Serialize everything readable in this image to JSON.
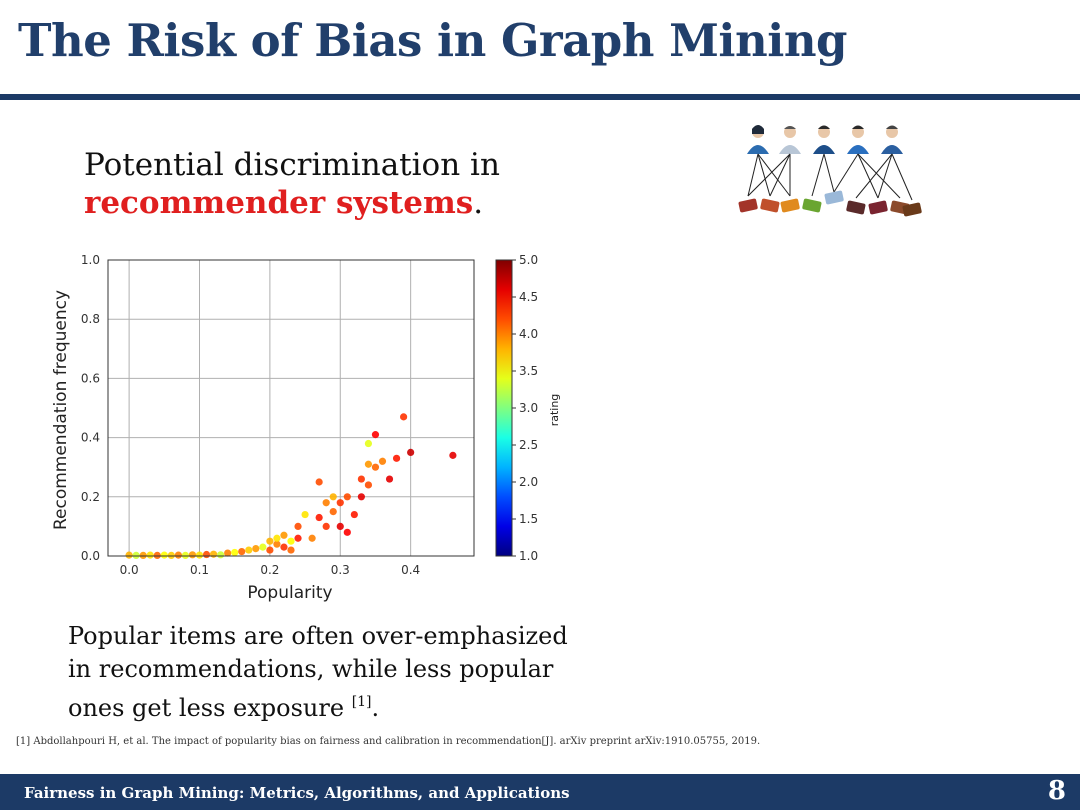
{
  "slide": {
    "title": "The Risk of Bias in Graph Mining",
    "headline_line1": "Potential discrimination in",
    "headline_emphasis": "recommender systems",
    "headline_period": ".",
    "caption_text": "Popular items are often over-emphasized in recommendations, while less popular ones get less exposure",
    "caption_citation": "[1]",
    "caption_end": ".",
    "reference": "[1] Abdollahpouri H, et al. The impact of popularity bias on fairness and calibration in recommendation[J]. arXiv preprint arXiv:1910.05755, 2019.",
    "footer": "Fairness in Graph Mining: Metrics, Algorithms, and Applications",
    "page_number": "8"
  },
  "colors": {
    "title": "#213f6b",
    "rule": "#1c3a66",
    "emphasis": "#e01f1f"
  },
  "illustration": {
    "users": [
      "user-female",
      "user-male",
      "user-male",
      "user-male",
      "user-male"
    ],
    "items": [
      "#a3342a",
      "#c0502b",
      "#e08a1e",
      "#6aa531",
      "#9ab8d8",
      "#5a2a2a",
      "#7a2430",
      "#8b4a2b",
      "#6a3a1a"
    ]
  },
  "chart_data": {
    "type": "scatter",
    "xlabel": "Popularity",
    "ylabel": "Recommendation frequency",
    "xlim": [
      -0.03,
      0.49
    ],
    "ylim": [
      0.0,
      1.0
    ],
    "xticks": [
      "0.0",
      "0.1",
      "0.2",
      "0.3",
      "0.4"
    ],
    "xtick_values": [
      0.0,
      0.1,
      0.2,
      0.3,
      0.4
    ],
    "yticks": [
      "0.0",
      "0.2",
      "0.4",
      "0.6",
      "0.8",
      "1.0"
    ],
    "ytick_values": [
      0.0,
      0.2,
      0.4,
      0.6,
      0.8,
      1.0
    ],
    "grid": true,
    "colorbar": {
      "label": "rating",
      "min": 1.0,
      "max": 5.0,
      "ticks": [
        "1.0",
        "1.5",
        "2.0",
        "2.5",
        "3.0",
        "3.5",
        "4.0",
        "4.5",
        "5.0"
      ],
      "tick_values": [
        1.0,
        1.5,
        2.0,
        2.5,
        3.0,
        3.5,
        4.0,
        4.5,
        5.0
      ]
    },
    "points": [
      {
        "x": 0.0,
        "y": 0.003,
        "r": 3.8
      },
      {
        "x": 0.01,
        "y": 0.002,
        "r": 3.3
      },
      {
        "x": 0.02,
        "y": 0.002,
        "r": 3.9
      },
      {
        "x": 0.03,
        "y": 0.003,
        "r": 3.6
      },
      {
        "x": 0.04,
        "y": 0.002,
        "r": 4.1
      },
      {
        "x": 0.05,
        "y": 0.003,
        "r": 3.5
      },
      {
        "x": 0.06,
        "y": 0.002,
        "r": 3.7
      },
      {
        "x": 0.07,
        "y": 0.003,
        "r": 4.0
      },
      {
        "x": 0.08,
        "y": 0.002,
        "r": 3.4
      },
      {
        "x": 0.09,
        "y": 0.004,
        "r": 3.9
      },
      {
        "x": 0.1,
        "y": 0.003,
        "r": 3.6
      },
      {
        "x": 0.11,
        "y": 0.005,
        "r": 4.2
      },
      {
        "x": 0.12,
        "y": 0.006,
        "r": 3.8
      },
      {
        "x": 0.13,
        "y": 0.004,
        "r": 3.3
      },
      {
        "x": 0.14,
        "y": 0.01,
        "r": 4.0
      },
      {
        "x": 0.15,
        "y": 0.012,
        "r": 3.5
      },
      {
        "x": 0.16,
        "y": 0.015,
        "r": 4.1
      },
      {
        "x": 0.17,
        "y": 0.02,
        "r": 3.7
      },
      {
        "x": 0.18,
        "y": 0.025,
        "r": 3.9
      },
      {
        "x": 0.19,
        "y": 0.03,
        "r": 3.4
      },
      {
        "x": 0.2,
        "y": 0.02,
        "r": 4.2
      },
      {
        "x": 0.2,
        "y": 0.05,
        "r": 3.8
      },
      {
        "x": 0.21,
        "y": 0.04,
        "r": 4.0
      },
      {
        "x": 0.21,
        "y": 0.06,
        "r": 3.6
      },
      {
        "x": 0.22,
        "y": 0.03,
        "r": 4.3
      },
      {
        "x": 0.22,
        "y": 0.07,
        "r": 3.9
      },
      {
        "x": 0.23,
        "y": 0.02,
        "r": 4.1
      },
      {
        "x": 0.23,
        "y": 0.05,
        "r": 3.5
      },
      {
        "x": 0.24,
        "y": 0.1,
        "r": 4.2
      },
      {
        "x": 0.24,
        "y": 0.06,
        "r": 4.4
      },
      {
        "x": 0.25,
        "y": 0.14,
        "r": 3.6
      },
      {
        "x": 0.26,
        "y": 0.06,
        "r": 4.0
      },
      {
        "x": 0.27,
        "y": 0.25,
        "r": 4.2
      },
      {
        "x": 0.27,
        "y": 0.13,
        "r": 4.4
      },
      {
        "x": 0.28,
        "y": 0.18,
        "r": 4.0
      },
      {
        "x": 0.28,
        "y": 0.1,
        "r": 4.3
      },
      {
        "x": 0.29,
        "y": 0.2,
        "r": 3.8
      },
      {
        "x": 0.29,
        "y": 0.15,
        "r": 4.1
      },
      {
        "x": 0.3,
        "y": 0.18,
        "r": 4.3
      },
      {
        "x": 0.3,
        "y": 0.1,
        "r": 4.6
      },
      {
        "x": 0.31,
        "y": 0.2,
        "r": 4.2
      },
      {
        "x": 0.31,
        "y": 0.08,
        "r": 4.5
      },
      {
        "x": 0.32,
        "y": 0.14,
        "r": 4.4
      },
      {
        "x": 0.33,
        "y": 0.2,
        "r": 4.6
      },
      {
        "x": 0.33,
        "y": 0.26,
        "r": 4.3
      },
      {
        "x": 0.34,
        "y": 0.38,
        "r": 3.4
      },
      {
        "x": 0.34,
        "y": 0.24,
        "r": 4.2
      },
      {
        "x": 0.34,
        "y": 0.31,
        "r": 3.9
      },
      {
        "x": 0.35,
        "y": 0.41,
        "r": 4.5
      },
      {
        "x": 0.35,
        "y": 0.3,
        "r": 4.1
      },
      {
        "x": 0.36,
        "y": 0.32,
        "r": 4.0
      },
      {
        "x": 0.37,
        "y": 0.26,
        "r": 4.6
      },
      {
        "x": 0.38,
        "y": 0.33,
        "r": 4.4
      },
      {
        "x": 0.39,
        "y": 0.47,
        "r": 4.3
      },
      {
        "x": 0.4,
        "y": 0.35,
        "r": 4.7
      },
      {
        "x": 0.46,
        "y": 0.34,
        "r": 4.6
      }
    ]
  }
}
